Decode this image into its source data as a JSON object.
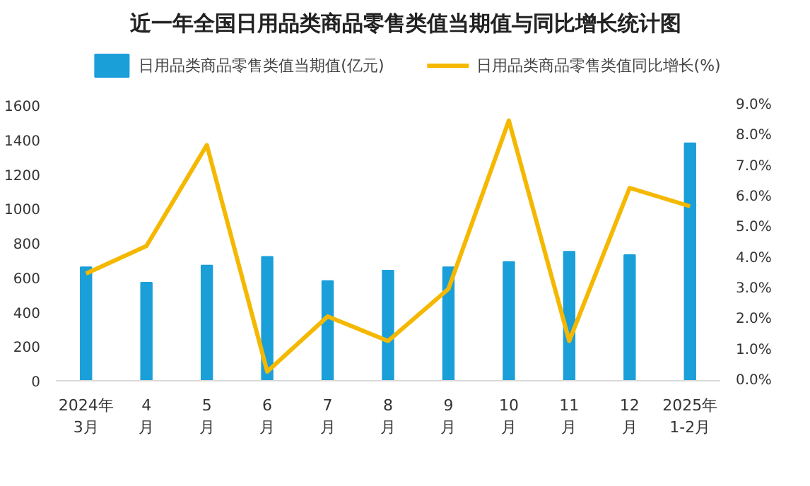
{
  "chart_data": {
    "type": "bar",
    "title": "近一年全国日用品类商品零售类值当期值与同比增长统计图",
    "categories": [
      "2024年\n3月",
      "4\n月",
      "5\n月",
      "6\n月",
      "7\n月",
      "8\n月",
      "9\n月",
      "10\n月",
      "11\n月",
      "12\n月",
      "2025年\n1-2月"
    ],
    "series": [
      {
        "name": "日用品类商品零售类值当期值(亿元)",
        "color": "#1a9fd9",
        "values": [
          660,
          570,
          670,
          720,
          580,
          640,
          660,
          690,
          750,
          730,
          1380
        ]
      },
      {
        "name": "日用品类商品零售类值同比增长(%)",
        "type": "line",
        "axis": "y2",
        "color": "#f5b800",
        "values": [
          3.5,
          4.4,
          7.7,
          0.3,
          2.1,
          1.3,
          3.0,
          8.5,
          1.3,
          6.3,
          5.7
        ]
      }
    ],
    "ylim": [
      0,
      1600
    ],
    "yticks": [
      0,
      200,
      400,
      600,
      800,
      1000,
      1200,
      1400,
      1600
    ],
    "y2lim": [
      0,
      9
    ],
    "y2ticks": [
      {
        "value": 0,
        "label": "0.0%"
      },
      {
        "value": 1,
        "label": "1.0%"
      },
      {
        "value": 2,
        "label": "2.0%"
      },
      {
        "value": 3,
        "label": "3.0%"
      },
      {
        "value": 4,
        "label": "4.0%"
      },
      {
        "value": 5,
        "label": "5.0%"
      },
      {
        "value": 6,
        "label": "6.0%"
      },
      {
        "value": 7,
        "label": "7.0%"
      },
      {
        "value": 8,
        "label": "8.0%"
      },
      {
        "value": 9,
        "label": "9.0%"
      }
    ],
    "grid": false,
    "legend": "top"
  }
}
